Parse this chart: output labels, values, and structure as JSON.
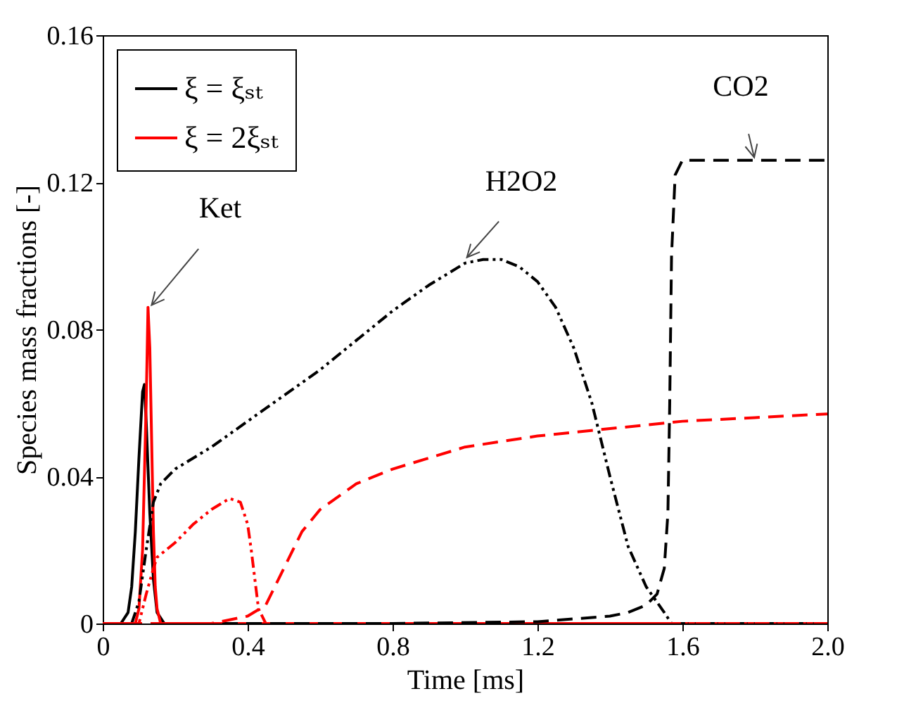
{
  "chart_data": {
    "type": "line",
    "xlabel": "Time [ms]",
    "ylabel": "Species mass fractions [-]",
    "xlim": [
      0,
      2.0
    ],
    "ylim": [
      0,
      0.16
    ],
    "xticks": [
      0,
      0.4,
      0.8,
      1.2,
      1.6,
      {
        "value": 2.0,
        "label": "2.0"
      }
    ],
    "yticks": [
      0,
      0.04,
      0.08,
      0.12,
      0.16
    ],
    "legend": "top left",
    "annotations": [
      {
        "text": "Ket",
        "x": 0.13,
        "y": 0.086
      },
      {
        "text": "H2O2",
        "x": 1.0,
        "y": 0.099
      },
      {
        "text": "CO2",
        "x": 1.8,
        "y": 0.126
      }
    ],
    "series": [
      {
        "name": "ξ = ξₛₜ",
        "color": "#000000",
        "line_style": "solid",
        "x": [
          0,
          0.05,
          0.07,
          0.08,
          0.09,
          0.1,
          0.11,
          0.115,
          0.12,
          0.13,
          0.14,
          0.15,
          0.17,
          0.2,
          2.0
        ],
        "values": [
          0,
          0,
          0.003,
          0.01,
          0.025,
          0.045,
          0.063,
          0.065,
          0.055,
          0.03,
          0.012,
          0.003,
          0,
          0,
          0
        ]
      },
      {
        "name": "ξ = 2ξₛₜ",
        "color": "#ff0000",
        "line_style": "solid",
        "x": [
          0,
          0.09,
          0.1,
          0.11,
          0.12,
          0.125,
          0.13,
          0.135,
          0.14,
          0.145,
          0.15,
          0.16,
          2.0
        ],
        "values": [
          0,
          0,
          0.004,
          0.02,
          0.06,
          0.086,
          0.075,
          0.05,
          0.025,
          0.01,
          0.004,
          0,
          0
        ]
      },
      {
        "color": "#000000",
        "line_style": "dashdot",
        "x": [
          0,
          0.08,
          0.1,
          0.12,
          0.14,
          0.16,
          0.2,
          0.3,
          0.4,
          0.5,
          0.6,
          0.7,
          0.8,
          0.9,
          1.0,
          1.05,
          1.1,
          1.15,
          1.2,
          1.25,
          1.3,
          1.35,
          1.4,
          1.45,
          1.5,
          1.55,
          1.57,
          2.0
        ],
        "values": [
          0,
          0,
          0.006,
          0.02,
          0.033,
          0.038,
          0.042,
          0.048,
          0.055,
          0.062,
          0.069,
          0.077,
          0.085,
          0.092,
          0.098,
          0.099,
          0.099,
          0.097,
          0.093,
          0.086,
          0.075,
          0.06,
          0.04,
          0.021,
          0.01,
          0.003,
          0,
          0
        ]
      },
      {
        "color": "#ff0000",
        "line_style": "dashdot",
        "x": [
          0,
          0.1,
          0.12,
          0.14,
          0.15,
          0.2,
          0.25,
          0.3,
          0.35,
          0.38,
          0.4,
          0.41,
          0.42,
          0.43,
          0.45,
          2.0
        ],
        "values": [
          0,
          0,
          0.008,
          0.015,
          0.018,
          0.022,
          0.027,
          0.031,
          0.034,
          0.033,
          0.027,
          0.02,
          0.012,
          0.004,
          0,
          0
        ]
      },
      {
        "color": "#000000",
        "line_style": "dashed",
        "x": [
          0,
          0.8,
          1.2,
          1.4,
          1.45,
          1.5,
          1.53,
          1.55,
          1.56,
          1.565,
          1.57,
          1.58,
          1.6,
          2.0
        ],
        "values": [
          0,
          0,
          0.0005,
          0.002,
          0.003,
          0.005,
          0.008,
          0.015,
          0.03,
          0.06,
          0.1,
          0.122,
          0.126,
          0.126
        ]
      },
      {
        "color": "#ff0000",
        "line_style": "dashed",
        "x": [
          0,
          0.3,
          0.4,
          0.45,
          0.5,
          0.55,
          0.6,
          0.7,
          0.8,
          0.9,
          1.0,
          1.2,
          1.4,
          1.6,
          1.8,
          2.0
        ],
        "values": [
          0,
          0,
          0.002,
          0.005,
          0.015,
          0.025,
          0.031,
          0.038,
          0.042,
          0.045,
          0.048,
          0.051,
          0.053,
          0.055,
          0.056,
          0.057
        ]
      }
    ]
  }
}
